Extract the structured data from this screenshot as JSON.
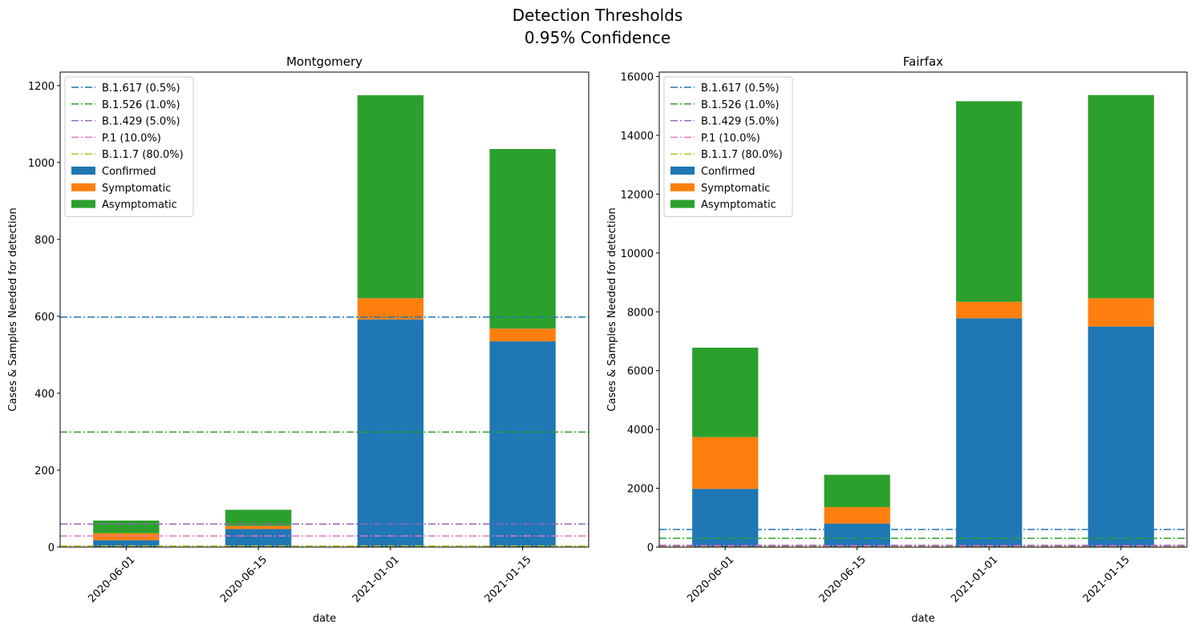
{
  "figure": {
    "title_line1": "Detection Thresholds",
    "title_line2": "0.95% Confidence"
  },
  "chart_data": [
    {
      "type": "bar",
      "stacked": true,
      "title": "Montgomery",
      "xlabel": "date",
      "ylabel": "Cases & Samples Needed for detection",
      "categories": [
        "2020-06-01",
        "2020-06-15",
        "2021-01-01",
        "2021-01-15"
      ],
      "ylim": [
        0,
        1235
      ],
      "yticks": [
        0,
        200,
        400,
        600,
        800,
        1000,
        1200
      ],
      "series": [
        {
          "name": "Confirmed",
          "color": "#1f77b4",
          "values": [
            18,
            47,
            592,
            535
          ]
        },
        {
          "name": "Symptomatic",
          "color": "#ff7f0e",
          "values": [
            18,
            8,
            55,
            33
          ]
        },
        {
          "name": "Asymptomatic",
          "color": "#2ca02c",
          "values": [
            33,
            42,
            528,
            467
          ]
        }
      ],
      "threshold_lines": [
        {
          "name": "B.1.617 (0.5%)",
          "color": "#1f77b4",
          "value": 598
        },
        {
          "name": "B.1.526 (1.0%)",
          "color": "#2ca02c",
          "value": 299
        },
        {
          "name": "B.1.429 (5.0%)",
          "color": "#9467bd",
          "value": 60
        },
        {
          "name": "P.1 (10.0%)",
          "color": "#e377c2",
          "value": 29
        },
        {
          "name": "B.1.1.7 (80.0%)",
          "color": "#bcbd22",
          "value": 3
        }
      ],
      "legend_position": "upper left",
      "grid": false
    },
    {
      "type": "bar",
      "stacked": true,
      "title": "Fairfax",
      "xlabel": "date",
      "ylabel": "Cases & Samples Needed for detection",
      "categories": [
        "2020-06-01",
        "2020-06-15",
        "2021-01-01",
        "2021-01-15"
      ],
      "ylim": [
        0,
        16150
      ],
      "yticks": [
        0,
        2000,
        4000,
        6000,
        8000,
        10000,
        12000,
        14000,
        16000
      ],
      "series": [
        {
          "name": "Confirmed",
          "color": "#1f77b4",
          "values": [
            1980,
            800,
            7780,
            7500
          ]
        },
        {
          "name": "Symptomatic",
          "color": "#ff7f0e",
          "values": [
            1760,
            560,
            560,
            960
          ]
        },
        {
          "name": "Asymptomatic",
          "color": "#2ca02c",
          "values": [
            3040,
            1100,
            6820,
            6910
          ]
        }
      ],
      "threshold_lines": [
        {
          "name": "B.1.617 (0.5%)",
          "color": "#1f77b4",
          "value": 598
        },
        {
          "name": "B.1.526 (1.0%)",
          "color": "#2ca02c",
          "value": 299
        },
        {
          "name": "B.1.429 (5.0%)",
          "color": "#9467bd",
          "value": 60
        },
        {
          "name": "P.1 (10.0%)",
          "color": "#e377c2",
          "value": 29
        },
        {
          "name": "B.1.1.7 (80.0%)",
          "color": "#bcbd22",
          "value": 3
        }
      ],
      "legend_position": "upper left",
      "grid": false
    }
  ]
}
